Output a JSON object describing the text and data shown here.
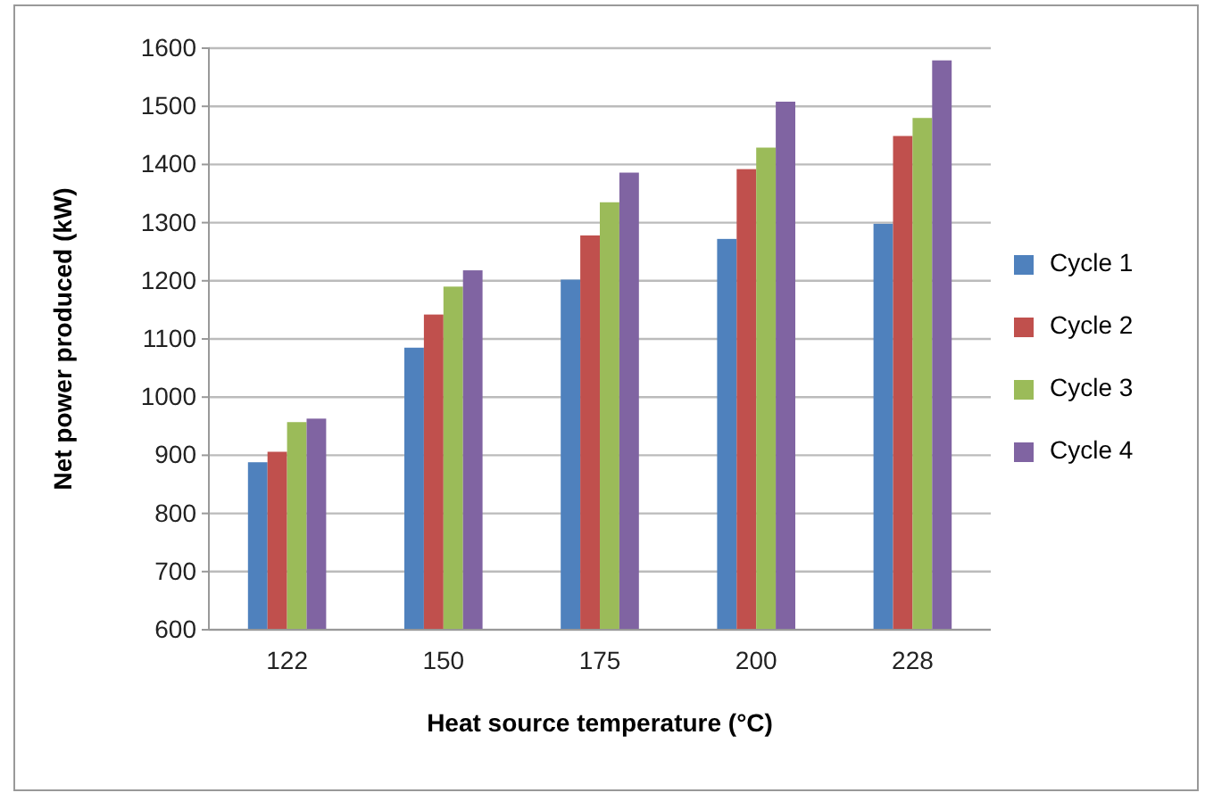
{
  "chart_data": {
    "type": "bar",
    "xlabel": "Heat source temperature (°C)",
    "ylabel": "Net power produced (kW)",
    "categories": [
      "122",
      "150",
      "175",
      "200",
      "228"
    ],
    "series": [
      {
        "name": "Cycle 1",
        "color": "#4f81bd",
        "values": [
          888,
          1085,
          1202,
          1272,
          1298
        ]
      },
      {
        "name": "Cycle 2",
        "color": "#c0504d",
        "values": [
          906,
          1142,
          1278,
          1392,
          1449
        ]
      },
      {
        "name": "Cycle 3",
        "color": "#9bbb59",
        "values": [
          957,
          1190,
          1335,
          1429,
          1480
        ]
      },
      {
        "name": "Cycle 4",
        "color": "#8064a2",
        "values": [
          963,
          1218,
          1386,
          1508,
          1579
        ]
      }
    ],
    "ylim": [
      600,
      1600
    ],
    "yticks": [
      600,
      700,
      800,
      900,
      1000,
      1100,
      1200,
      1300,
      1400,
      1500,
      1600
    ],
    "grid": "y",
    "legend": "right"
  }
}
